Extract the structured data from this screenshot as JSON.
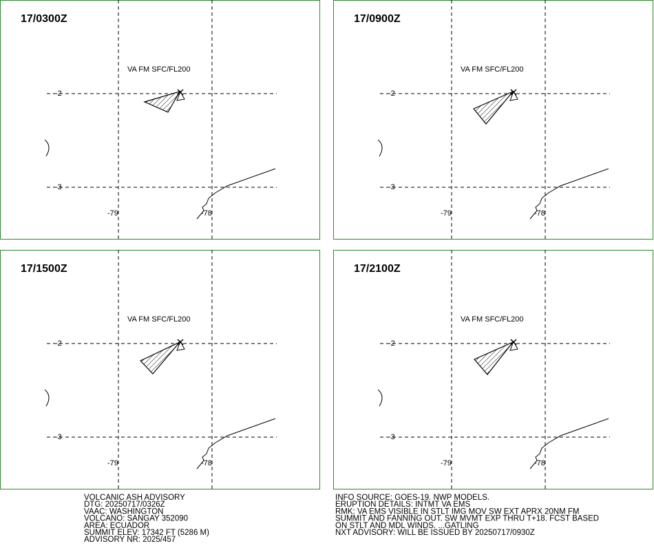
{
  "panels": [
    {
      "time": "17/0300Z",
      "label": "VA FM SFC/FL200"
    },
    {
      "time": "17/0900Z",
      "label": "VA FM SFC/FL200"
    },
    {
      "time": "17/1500Z",
      "label": "VA FM SFC/FL200"
    },
    {
      "time": "17/2100Z",
      "label": "VA FM SFC/FL200"
    }
  ],
  "grid": {
    "lat_labels": [
      "-2",
      "-3"
    ],
    "lon_labels": [
      "-79",
      "-78"
    ]
  },
  "advisory": {
    "left": [
      "VOLCANIC ASH ADVISORY",
      "DTG: 20250717/0326Z",
      "VAAC: WASHINGTON",
      "VOLCANO: SANGAY 352090",
      "AREA: ECUADOR",
      "SUMMIT ELEV: 17342 FT (5286 M)",
      "ADVISORY NR: 2025/457"
    ],
    "right": [
      "INFO SOURCE: GOES-19. NWP MODELS.",
      "ERUPTION DETAILS: INTMT VA EMS",
      "RMK: VA EMS VISIBLE IN STLT IMG MOV SW EXT APRX 20NM FM",
      "SUMMIT AND FANNING OUT. SW MVMT EXP THRU T+18. FCST BASED",
      "ON STLT AND MDL WINDS. ...GATLING",
      "NXT ADVISORY: WILL BE ISSUED BY 20250717/0930Z"
    ]
  }
}
